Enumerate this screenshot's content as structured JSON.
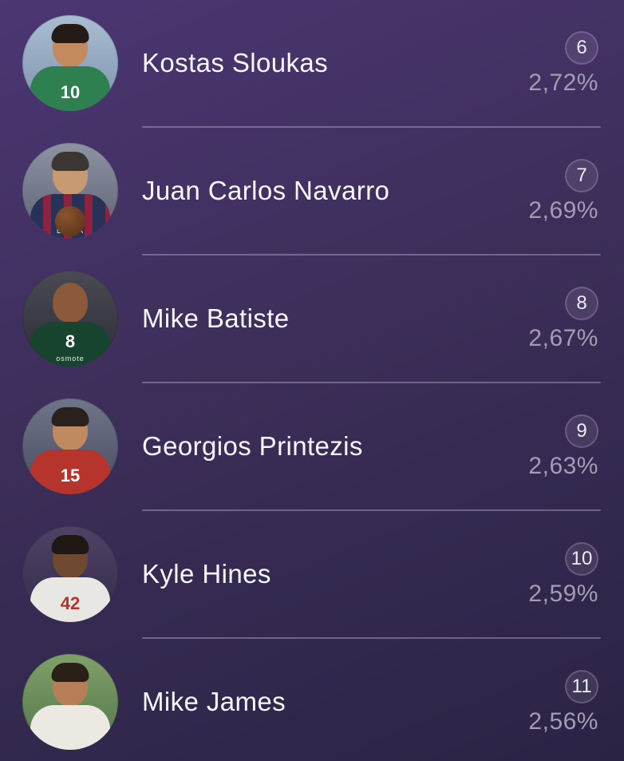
{
  "theme": {
    "bgtop": "#4c3673",
    "bgmid": "#3c2e59",
    "bgbot": "#2b2344",
    "divider": "#a99ec0",
    "name": "#f8f7fb",
    "pct": "#a59bb4",
    "badgenum": "#efeaf6"
  },
  "players": [
    {
      "rank": "6",
      "name": "Kostas Sloukas",
      "pct": "2,72%",
      "avatar": {
        "number": "10",
        "label": "",
        "colors": {
          "bg1": "#a9bdd2",
          "bg2": "#7d93ac",
          "jersey": "#2e8050",
          "skin": "#c18a5f",
          "hair": "#241b17",
          "num": "#ffffff"
        }
      }
    },
    {
      "rank": "7",
      "name": "Juan Carlos Navarro",
      "pct": "2,69%",
      "avatar": {
        "number": "",
        "label": "LASSA",
        "colors": {
          "bg1": "#8e93a3",
          "bg2": "#5c6272",
          "jersey": "#283258",
          "stripe": "#8c2240",
          "skin": "#c79a74",
          "hair": "#3a3631",
          "ball": "#8a5530"
        }
      }
    },
    {
      "rank": "8",
      "name": "Mike Batiste",
      "pct": "2,67%",
      "avatar": {
        "number": "8",
        "label": "osmote",
        "colors": {
          "bg1": "#4a4a55",
          "bg2": "#2d2d38",
          "jersey": "#17442f",
          "skin": "#8a5a3b",
          "hair": "#8a5a3b",
          "num": "#ffffff"
        }
      }
    },
    {
      "rank": "9",
      "name": "Georgios Printezis",
      "pct": "2,63%",
      "avatar": {
        "number": "15",
        "label": "",
        "colors": {
          "bg1": "#70758a",
          "bg2": "#474b5e",
          "jersey": "#b5342c",
          "skin": "#c08a61",
          "hair": "#2b211c",
          "num": "#ffffff"
        }
      }
    },
    {
      "rank": "10",
      "name": "Kyle Hines",
      "pct": "2,59%",
      "avatar": {
        "number": "42",
        "label": "",
        "colors": {
          "bg1": "#4e4266",
          "bg2": "#342b49",
          "jersey": "#e9e7e4",
          "skin": "#6f4a31",
          "hair": "#1f1713",
          "num": "#b5342c"
        }
      }
    },
    {
      "rank": "11",
      "name": "Mike James",
      "pct": "2,56%",
      "avatar": {
        "number": "",
        "label": "",
        "colors": {
          "bg1": "#7fa069",
          "bg2": "#54764a",
          "jersey": "#ece8e2",
          "skin": "#b67f57",
          "hair": "#2b2018"
        }
      }
    }
  ]
}
